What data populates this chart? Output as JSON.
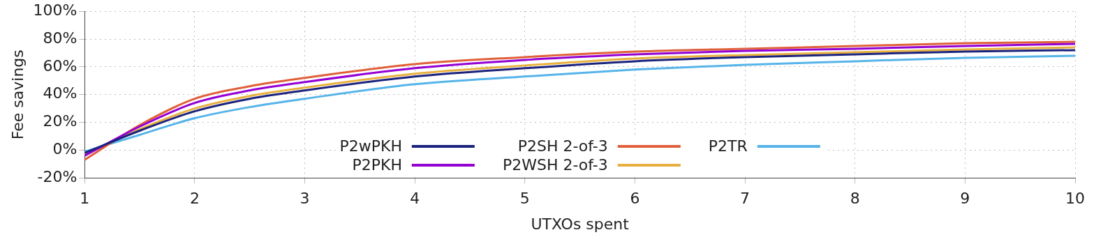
{
  "chart_data": {
    "type": "line",
    "xlabel": "UTXOs spent",
    "ylabel": "Fee savings",
    "xlim": [
      1,
      10
    ],
    "xticks": [
      1,
      2,
      3,
      4,
      5,
      6,
      7,
      8,
      9,
      10
    ],
    "ylim": [
      -20,
      100
    ],
    "yticks": [
      {
        "value": -20,
        "label": "-20%"
      },
      {
        "value": 0,
        "label": "0%"
      },
      {
        "value": 20,
        "label": "20%"
      },
      {
        "value": 40,
        "label": "40%"
      },
      {
        "value": 60,
        "label": "60%"
      },
      {
        "value": 80,
        "label": "80%"
      },
      {
        "value": 100,
        "label": "100%"
      }
    ],
    "x": [
      1,
      1.5,
      2,
      2.5,
      3,
      4,
      5,
      6,
      7,
      8,
      9,
      10
    ],
    "grid": true,
    "legend": "bottom",
    "marker": "none",
    "line_style": "solid",
    "series": [
      {
        "name": "P2wPKH",
        "color": "#1a237e",
        "values": [
          -2,
          14,
          28,
          37,
          43,
          53,
          59,
          64,
          67,
          69,
          71,
          72
        ]
      },
      {
        "name": "P2PKH",
        "color": "#9400d3",
        "values": [
          -4,
          17,
          34,
          43,
          49,
          59,
          65,
          69,
          71.5,
          73,
          75,
          76.5
        ]
      },
      {
        "name": "P2SH 2-of-3",
        "color": "#e0603a",
        "values": [
          -7,
          18,
          37,
          46,
          52,
          62,
          67,
          71,
          73,
          75,
          77,
          78
        ]
      },
      {
        "name": "P2WSH 2-of-3",
        "color": "#e8b040",
        "values": [
          -3,
          15,
          30,
          39,
          45,
          55,
          61,
          66,
          68.5,
          70.5,
          72.5,
          74
        ]
      },
      {
        "name": "P2TR",
        "color": "#56b4e9",
        "values": [
          -1,
          11,
          23,
          31,
          37,
          47.5,
          53,
          58,
          61.5,
          64,
          66.5,
          68
        ]
      }
    ]
  }
}
